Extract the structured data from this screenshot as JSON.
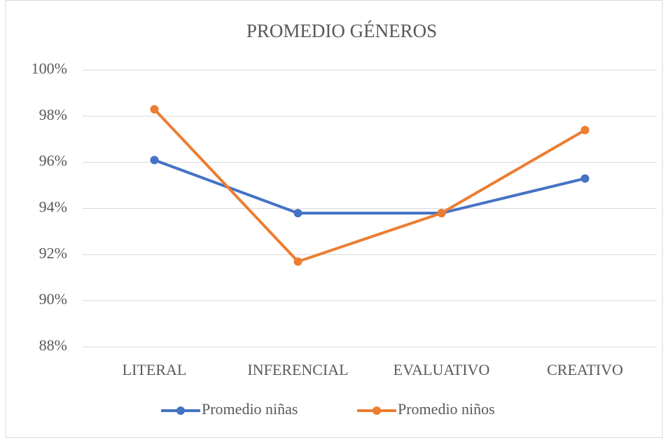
{
  "chart_data": {
    "type": "line",
    "title": "PROMEDIO GÉNEROS",
    "categories": [
      "LITERAL",
      "INFERENCIAL",
      "EVALUATIVO",
      "CREATIVO"
    ],
    "series": [
      {
        "name": "Promedio niñas",
        "color": "#4472c4",
        "values": [
          96.1,
          93.8,
          93.8,
          95.3
        ]
      },
      {
        "name": "Promedio niños",
        "color": "#ed7d31",
        "values": [
          98.3,
          91.7,
          93.8,
          97.4
        ]
      }
    ],
    "ylim": [
      88,
      100
    ],
    "yticks": [
      {
        "value": 88,
        "label": "88%"
      },
      {
        "value": 90,
        "label": "90%"
      },
      {
        "value": 92,
        "label": "92%"
      },
      {
        "value": 94,
        "label": "94%"
      },
      {
        "value": 96,
        "label": "96%"
      },
      {
        "value": 98,
        "label": "98%"
      },
      {
        "value": 100,
        "label": "100%"
      }
    ],
    "grid": true,
    "legend": "bottom"
  }
}
